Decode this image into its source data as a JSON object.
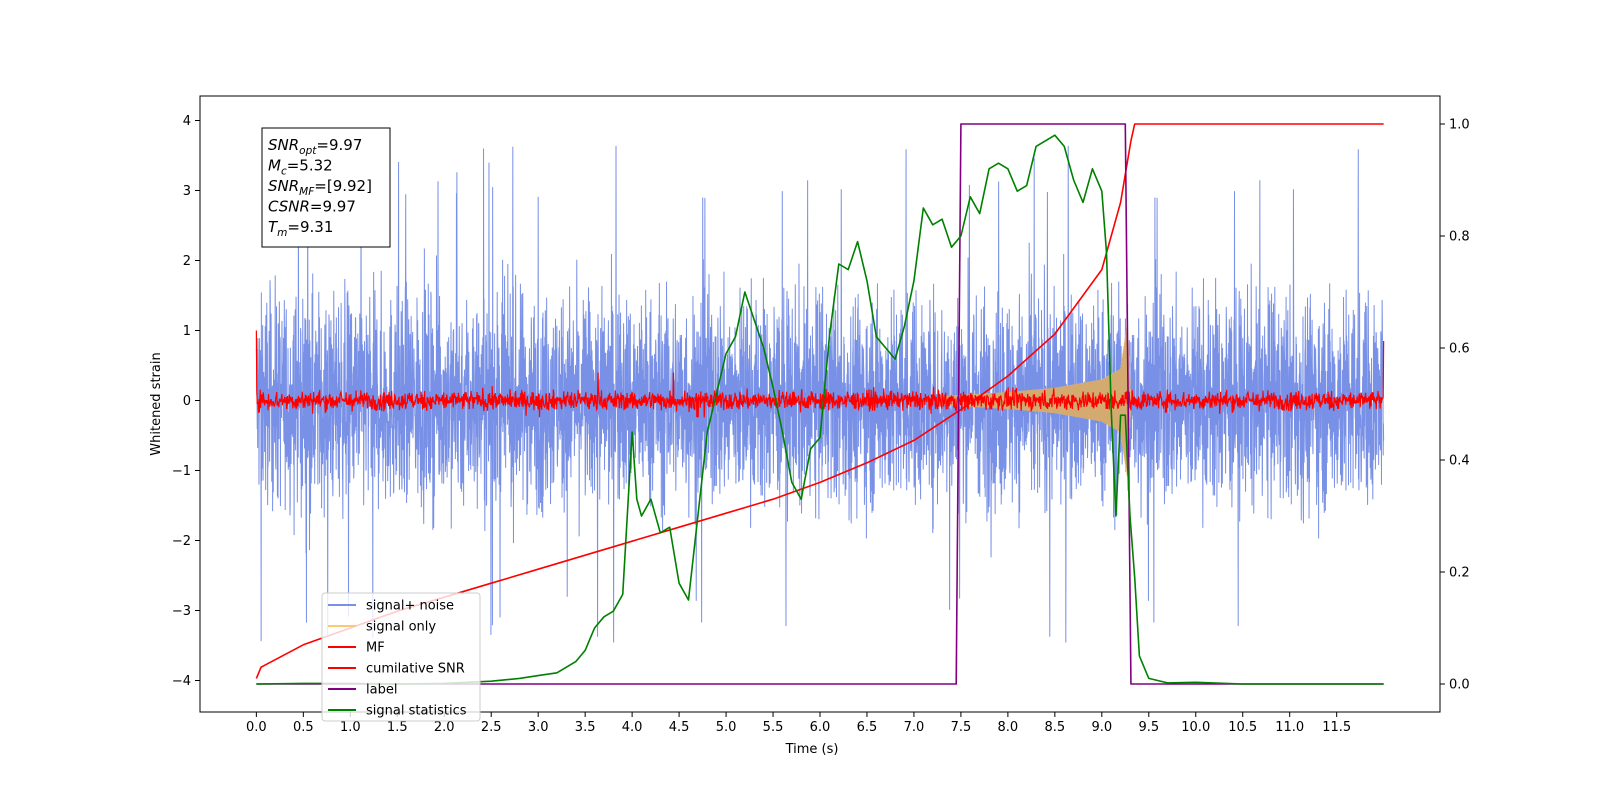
{
  "chart_data": {
    "type": "line",
    "xlabel": "Time (s)",
    "ylabel": "Whitened strain",
    "xlim": [
      -0.6,
      12.6
    ],
    "ylim": [
      -4.45,
      4.35
    ],
    "ylim_right": [
      -0.05,
      1.05
    ],
    "x_ticks": [
      "0.0",
      "0.5",
      "1.0",
      "1.5",
      "2.0",
      "2.5",
      "3.0",
      "3.5",
      "4.0",
      "4.5",
      "5.0",
      "5.5",
      "6.0",
      "6.5",
      "7.0",
      "7.5",
      "8.0",
      "8.5",
      "9.0",
      "9.5",
      "10.0",
      "10.5",
      "11.0",
      "11.5"
    ],
    "x_tick_values": [
      0,
      0.5,
      1,
      1.5,
      2,
      2.5,
      3,
      3.5,
      4,
      4.5,
      5,
      5.5,
      6,
      6.5,
      7,
      7.5,
      8,
      8.5,
      9,
      9.5,
      10,
      10.5,
      11,
      11.5
    ],
    "y_ticks": [
      "−4",
      "−3",
      "−2",
      "−1",
      "0",
      "1",
      "2",
      "3",
      "4"
    ],
    "y_tick_values": [
      -4,
      -3,
      -2,
      -1,
      0,
      1,
      2,
      3,
      4
    ],
    "y_right_ticks": [
      "0.0",
      "0.2",
      "0.4",
      "0.6",
      "0.8",
      "1.0"
    ],
    "y_right_tick_values": [
      0,
      0.2,
      0.4,
      0.6,
      0.8,
      1.0
    ],
    "grid": false,
    "legend_position": "lower-left",
    "info_box": {
      "lines": [
        {
          "base": "SNR",
          "sub": "opt",
          "value": "=9.97"
        },
        {
          "base": "M",
          "sub": "c",
          "value": "=5.32"
        },
        {
          "base": "SNR",
          "sub": "MF",
          "value": "=[9.92]"
        },
        {
          "base": "CSNR",
          "sub": "",
          "value": "=9.97"
        },
        {
          "base": "T",
          "sub": "m",
          "value": "=9.31"
        }
      ]
    },
    "series": [
      {
        "name": "signal+ noise",
        "color": "#7890e6",
        "axis": "left",
        "kind": "noise",
        "x_range": [
          0,
          12
        ],
        "amplitude": 1.0,
        "peak": 3.9
      },
      {
        "name": "signal only",
        "color": "#f5c97a",
        "axis": "left",
        "kind": "chirp",
        "x": [
          7.3,
          7.5,
          8.0,
          8.5,
          9.0,
          9.2,
          9.27,
          9.31
        ],
        "envelope": [
          0.06,
          0.08,
          0.12,
          0.18,
          0.3,
          0.45,
          1.1,
          0
        ]
      },
      {
        "name": "MF",
        "color": "#ff0000",
        "axis": "left",
        "kind": "noise-small",
        "x_range": [
          0,
          12
        ],
        "amplitude": 0.07,
        "edge_values": [
          1.0,
          0.85
        ]
      },
      {
        "name": "cumilative SNR",
        "color": "#ff0000",
        "axis": "right",
        "x": [
          0,
          0.05,
          0.5,
          1,
          1.5,
          2,
          2.5,
          3,
          3.5,
          4,
          4.5,
          5,
          5.5,
          6,
          6.5,
          7,
          7.5,
          8,
          8.5,
          9,
          9.2,
          9.31,
          9.35,
          12
        ],
        "values": [
          0.01,
          0.03,
          0.07,
          0.1,
          0.13,
          0.155,
          0.18,
          0.205,
          0.23,
          0.255,
          0.28,
          0.305,
          0.33,
          0.36,
          0.395,
          0.435,
          0.49,
          0.55,
          0.625,
          0.74,
          0.86,
          0.97,
          1.0,
          1.0
        ]
      },
      {
        "name": "label",
        "color": "#800080",
        "axis": "right",
        "x": [
          0,
          7.45,
          7.5,
          9.25,
          9.31,
          12
        ],
        "values": [
          0,
          0,
          1,
          1,
          0,
          0
        ]
      },
      {
        "name": "signal statistics",
        "color": "#008000",
        "axis": "right",
        "x": [
          0,
          0.5,
          1,
          1.5,
          2,
          2.5,
          2.8,
          3.0,
          3.2,
          3.4,
          3.5,
          3.6,
          3.7,
          3.8,
          3.9,
          4.0,
          4.05,
          4.1,
          4.2,
          4.3,
          4.4,
          4.5,
          4.6,
          4.7,
          4.8,
          4.9,
          5.0,
          5.1,
          5.2,
          5.3,
          5.4,
          5.5,
          5.6,
          5.7,
          5.8,
          5.9,
          6.0,
          6.1,
          6.2,
          6.3,
          6.4,
          6.5,
          6.6,
          6.7,
          6.8,
          6.9,
          7.0,
          7.1,
          7.2,
          7.3,
          7.4,
          7.5,
          7.6,
          7.7,
          7.8,
          7.9,
          8.0,
          8.1,
          8.2,
          8.3,
          8.4,
          8.5,
          8.6,
          8.7,
          8.8,
          8.9,
          9.0,
          9.05,
          9.1,
          9.15,
          9.2,
          9.25,
          9.3,
          9.35,
          9.4,
          9.5,
          9.7,
          10.0,
          10.5,
          12
        ],
        "values": [
          0,
          0.001,
          0.001,
          0.0,
          0.001,
          0.005,
          0.01,
          0.015,
          0.02,
          0.04,
          0.06,
          0.1,
          0.12,
          0.13,
          0.16,
          0.45,
          0.33,
          0.3,
          0.33,
          0.27,
          0.28,
          0.18,
          0.15,
          0.3,
          0.45,
          0.52,
          0.59,
          0.62,
          0.7,
          0.65,
          0.6,
          0.53,
          0.45,
          0.36,
          0.33,
          0.42,
          0.44,
          0.62,
          0.75,
          0.74,
          0.79,
          0.72,
          0.62,
          0.6,
          0.58,
          0.64,
          0.72,
          0.85,
          0.82,
          0.83,
          0.78,
          0.8,
          0.87,
          0.84,
          0.92,
          0.93,
          0.92,
          0.88,
          0.89,
          0.96,
          0.97,
          0.98,
          0.96,
          0.9,
          0.86,
          0.92,
          0.88,
          0.77,
          0.49,
          0.3,
          0.48,
          0.48,
          0.3,
          0.19,
          0.05,
          0.01,
          0.002,
          0.003,
          0.0,
          0.0
        ]
      }
    ]
  }
}
